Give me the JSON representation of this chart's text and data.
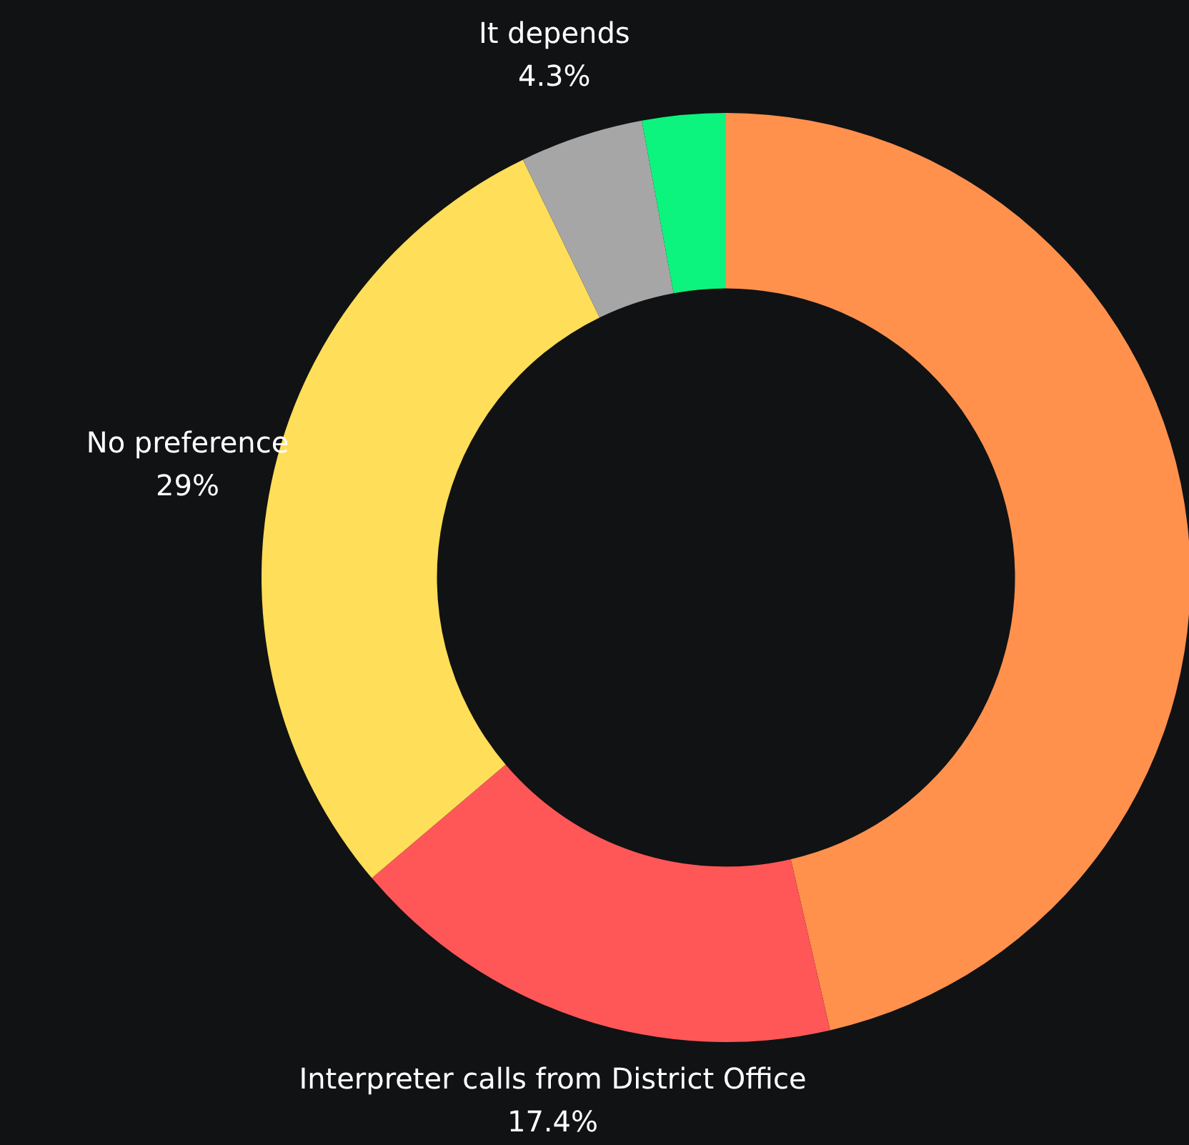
{
  "chart_data": {
    "type": "donut",
    "categories": [
      null,
      "Interpreter calls from District Office",
      "No preference",
      "It depends",
      null
    ],
    "values": [
      46.4,
      17.4,
      29,
      4.3,
      2.9
    ],
    "value_labels": [
      null,
      "17.4%",
      "29%",
      "4.3%",
      null
    ],
    "colors": [
      "#ff914d",
      "#ff5757",
      "#ffde59",
      "#a6a6a6",
      "#0df47e"
    ],
    "legend": false
  }
}
